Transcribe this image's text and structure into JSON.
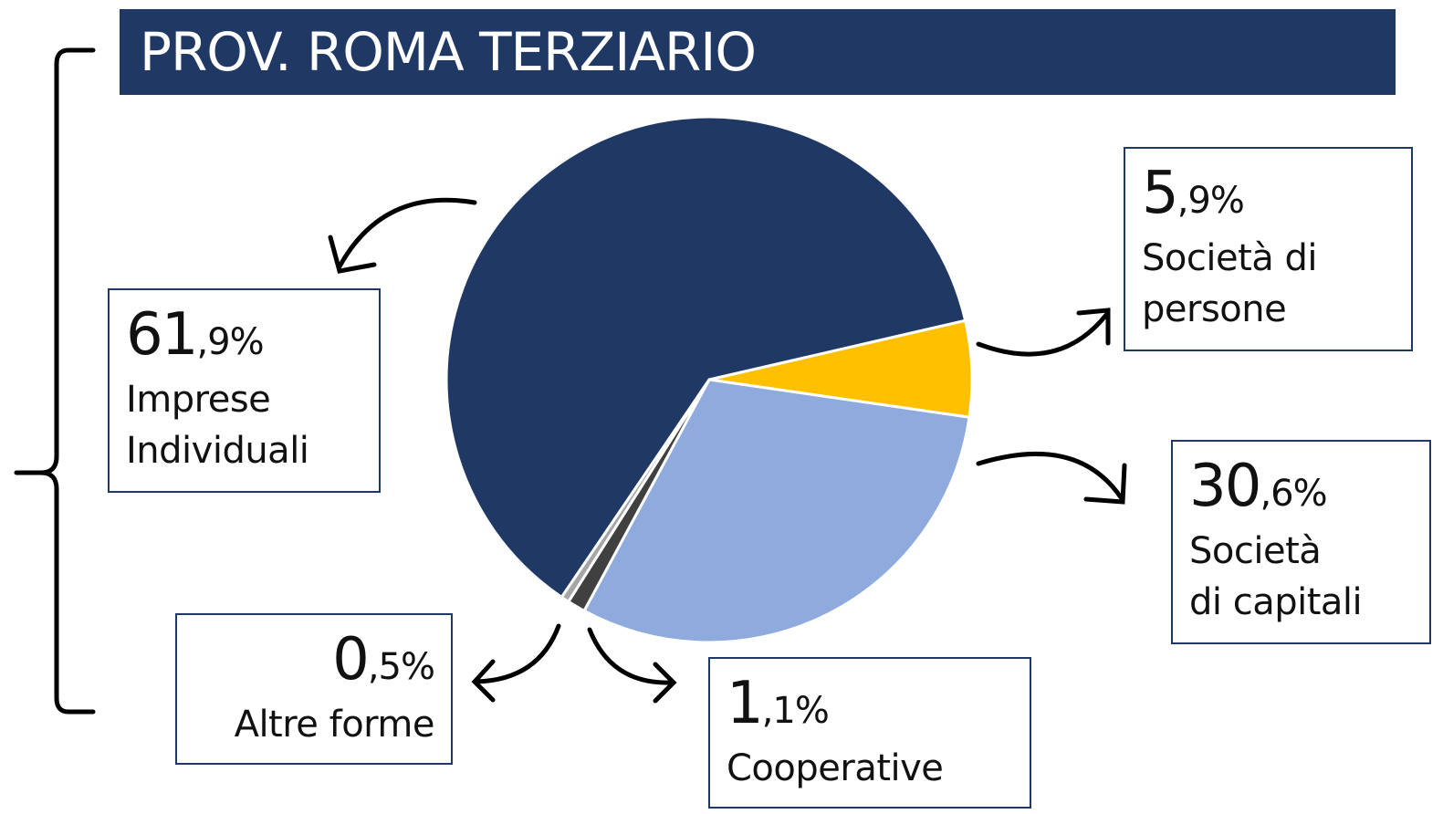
{
  "chart_data": {
    "type": "pie",
    "title": "PROV. ROMA TERZIARIO",
    "categories": [
      "Società di\npersone",
      "Società\ndi capitali",
      "Cooperative",
      "Altre forme",
      "Imprese\nIndividuali"
    ],
    "values": [
      5.9,
      30.6,
      1.1,
      0.5,
      61.9
    ],
    "value_labels": [
      "5,9%",
      "30,6%",
      "1,1%",
      "0,5%",
      "61,9%"
    ],
    "colors": [
      "#ffc000",
      "#8faadc",
      "#404040",
      "#a6a6a6",
      "#203864"
    ]
  }
}
